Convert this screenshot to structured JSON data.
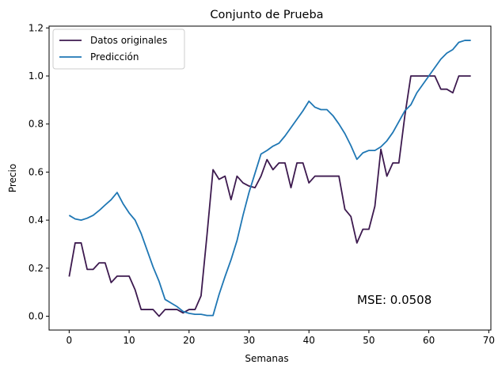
{
  "chart_data": {
    "type": "line",
    "title": "Conjunto de Prueba",
    "xlabel": "Semanas",
    "ylabel": "Precio",
    "xlim": [
      -3.35,
      70.35
    ],
    "ylim": [
      -0.0575,
      1.2075
    ],
    "xticks": [
      0,
      10,
      20,
      30,
      40,
      50,
      60,
      70
    ],
    "yticks": [
      0.0,
      0.2,
      0.4,
      0.6,
      0.8,
      1.0,
      1.2
    ],
    "ytick_labels": [
      "0.0",
      "0.2",
      "0.4",
      "0.6",
      "0.8",
      "1.0",
      "1.2"
    ],
    "grid": false,
    "legend_position": "upper-left",
    "annotation": "MSE: 0.0508",
    "x": [
      0,
      1,
      2,
      3,
      4,
      5,
      6,
      7,
      8,
      9,
      10,
      11,
      12,
      13,
      14,
      15,
      16,
      17,
      18,
      19,
      20,
      21,
      22,
      23,
      24,
      25,
      26,
      27,
      28,
      29,
      30,
      31,
      32,
      33,
      34,
      35,
      36,
      37,
      38,
      39,
      40,
      41,
      42,
      43,
      44,
      45,
      46,
      47,
      48,
      49,
      50,
      51,
      52,
      53,
      54,
      55,
      56,
      57,
      58,
      59,
      60,
      61,
      62,
      63,
      64,
      65,
      66,
      67
    ],
    "series": [
      {
        "name": "Datos originales",
        "color": "#3d1a4f",
        "values": [
          0.165,
          0.305,
          0.305,
          0.195,
          0.195,
          0.222,
          0.222,
          0.14,
          0.167,
          0.167,
          0.167,
          0.11,
          0.028,
          0.028,
          0.028,
          0.0,
          0.028,
          0.028,
          0.028,
          0.014,
          0.028,
          0.028,
          0.085,
          0.34,
          0.61,
          0.57,
          0.583,
          0.485,
          0.583,
          0.555,
          0.542,
          0.535,
          0.583,
          0.652,
          0.61,
          0.638,
          0.638,
          0.535,
          0.638,
          0.638,
          0.555,
          0.583,
          0.583,
          0.583,
          0.583,
          0.583,
          0.445,
          0.415,
          0.305,
          0.362,
          0.362,
          0.458,
          0.695,
          0.583,
          0.638,
          0.638,
          0.835,
          1.0,
          1.0,
          1.0,
          1.0,
          1.0,
          0.945,
          0.945,
          0.93,
          1.0,
          1.0,
          1.0
        ]
      },
      {
        "name": "Predicción",
        "color": "#1f77b4",
        "values": [
          0.42,
          0.405,
          0.4,
          0.408,
          0.42,
          0.44,
          0.463,
          0.485,
          0.515,
          0.468,
          0.43,
          0.4,
          0.345,
          0.275,
          0.205,
          0.145,
          0.07,
          0.055,
          0.04,
          0.02,
          0.012,
          0.008,
          0.008,
          0.003,
          0.003,
          0.09,
          0.165,
          0.235,
          0.315,
          0.42,
          0.515,
          0.595,
          0.675,
          0.69,
          0.708,
          0.72,
          0.75,
          0.785,
          0.82,
          0.855,
          0.895,
          0.87,
          0.86,
          0.86,
          0.835,
          0.8,
          0.76,
          0.71,
          0.653,
          0.68,
          0.69,
          0.69,
          0.705,
          0.73,
          0.765,
          0.81,
          0.855,
          0.88,
          0.93,
          0.965,
          1.0,
          1.035,
          1.07,
          1.095,
          1.11,
          1.14,
          1.148,
          1.148
        ]
      }
    ]
  }
}
